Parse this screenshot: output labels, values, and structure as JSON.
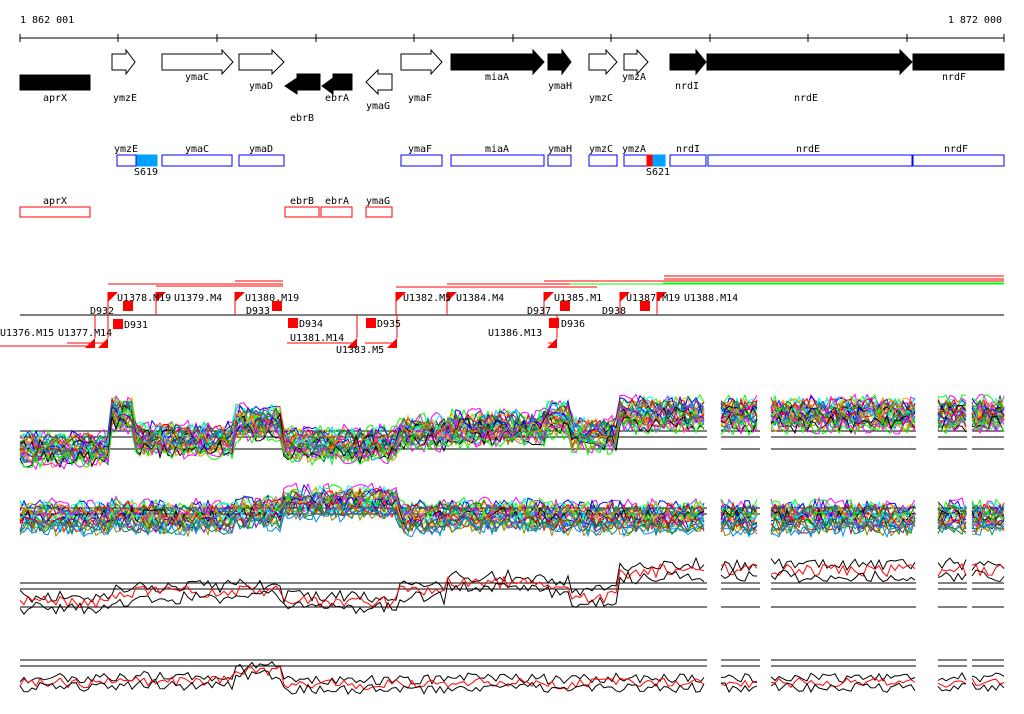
{
  "ruler": {
    "start": "1 862 001",
    "end": "1 872 000"
  },
  "genes": [
    "aprX",
    "ymzE",
    "ymaC",
    "ymaD",
    "ebrB",
    "ebrA",
    "ymaG",
    "ymaF",
    "miaA",
    "ymaH",
    "ymzC",
    "ymzA",
    "nrdI",
    "nrdE",
    "nrdF"
  ],
  "blue_track": [
    "ymzE",
    "S619",
    "ymaC",
    "ymaD",
    "ymaF",
    "miaA",
    "ymaH",
    "ymzC",
    "ymzA",
    "S621",
    "nrdI",
    "nrdE",
    "nrdF"
  ],
  "red_track": [
    "aprX",
    "ebrB",
    "ebrA",
    "ymaG"
  ],
  "features": [
    "U1378.M19",
    "U1379.M4",
    "U1380.M19",
    "U1382.M5",
    "U1384.M4",
    "U1385.M1",
    "U1387.M19",
    "U1388.M14",
    "D932",
    "D931",
    "D933",
    "D934",
    "D935",
    "D937",
    "D936",
    "D938",
    "U1376.M15",
    "U1377.M14",
    "U1381.M14",
    "U1383.M5",
    "U1386.M13"
  ],
  "colors": {
    "blue": "#0000ff",
    "red": "#ff0000",
    "green": "#00ff00",
    "fill_blue": "#00a0ff"
  }
}
